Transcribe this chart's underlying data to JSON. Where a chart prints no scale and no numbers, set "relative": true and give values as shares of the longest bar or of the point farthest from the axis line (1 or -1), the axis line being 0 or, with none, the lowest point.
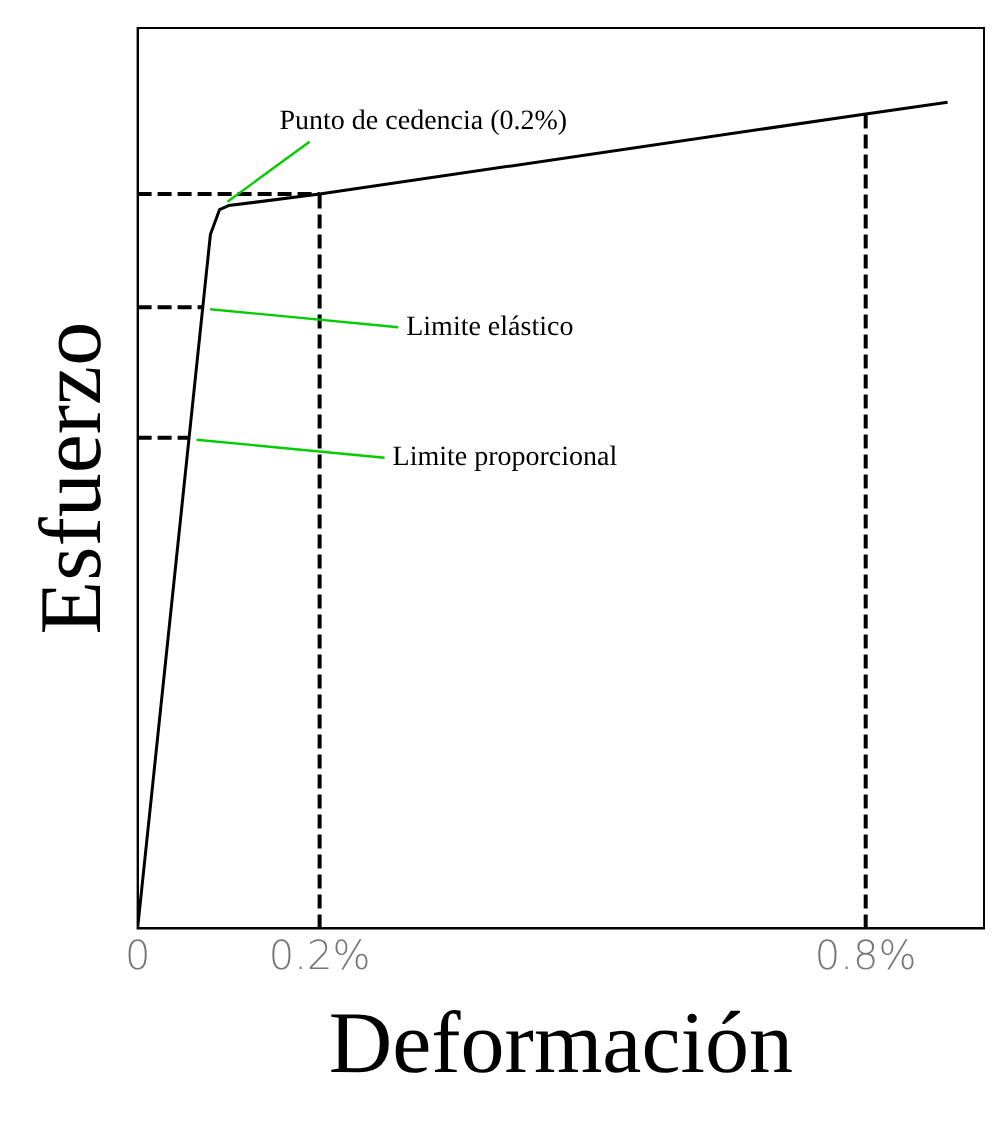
{
  "chart_data": {
    "type": "line",
    "xlabel": "Deformación",
    "ylabel": "Esfuerzo",
    "relative": true,
    "x": [
      0,
      0.08,
      0.09,
      0.1,
      0.2,
      0.8,
      0.89
    ],
    "values": [
      0,
      0.84,
      0.87,
      0.875,
      0.889,
      0.986,
      1
    ],
    "color": "#000000",
    "xlim": [
      0,
      0.93
    ],
    "xticks": [
      0,
      {
        "value": 0.2,
        "label": "0.2%"
      },
      {
        "value": 0.8,
        "label": "0.8%"
      }
    ],
    "grid": false,
    "legend": false,
    "marker": "none",
    "line_style": "solid",
    "ref_lines": [
      {
        "axis": "y",
        "value": 0.889,
        "line_style": "dashed",
        "color": "#000000"
      },
      {
        "axis": "x",
        "value": 0.2,
        "line_style": "dashed",
        "color": "#000000"
      },
      {
        "axis": "x",
        "value": 0.8,
        "line_style": "dashed",
        "color": "#000000"
      }
    ],
    "annotations": [
      {
        "text": "Punto de cedencia (0.2%)",
        "x": 0.09,
        "y": 0.87
      },
      {
        "text": "Limite elástico",
        "x": 0.071,
        "y": 0.752
      },
      {
        "text": "Limite proporcional",
        "x": 0.056,
        "y": 0.594
      }
    ]
  }
}
